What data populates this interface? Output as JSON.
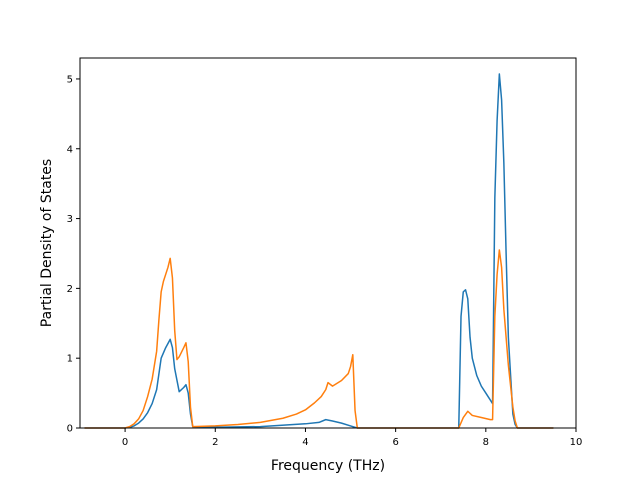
{
  "chart_data": {
    "type": "line",
    "title": "",
    "xlabel": "Frequency (THz)",
    "ylabel": "Partial Density of States",
    "xlim": [
      -1.0,
      10.0
    ],
    "ylim": [
      0,
      5.3
    ],
    "xticks": [
      0,
      2,
      4,
      6,
      8,
      10
    ],
    "yticks": [
      0,
      1,
      2,
      3,
      4,
      5
    ],
    "grid": false,
    "legend": "none",
    "series": [
      {
        "color": "#1f77b4",
        "x": [
          -0.9,
          0.0,
          0.1,
          0.2,
          0.3,
          0.4,
          0.5,
          0.6,
          0.7,
          0.8,
          0.9,
          1.0,
          1.05,
          1.1,
          1.2,
          1.3,
          1.35,
          1.4,
          1.45,
          1.5,
          2.0,
          3.0,
          4.0,
          4.3,
          4.45,
          4.6,
          4.8,
          5.0,
          5.1,
          5.15,
          6.0,
          7.0,
          7.4,
          7.45,
          7.5,
          7.55,
          7.6,
          7.65,
          7.7,
          7.8,
          7.9,
          8.0,
          8.1,
          8.15,
          8.2,
          8.25,
          8.3,
          8.35,
          8.4,
          8.45,
          8.5,
          8.6,
          8.65,
          8.7,
          9.5
        ],
        "y": [
          0,
          0,
          0.01,
          0.03,
          0.07,
          0.13,
          0.22,
          0.35,
          0.55,
          1.0,
          1.15,
          1.27,
          1.15,
          0.85,
          0.52,
          0.58,
          0.62,
          0.5,
          0.2,
          0.02,
          0.01,
          0.02,
          0.06,
          0.08,
          0.12,
          0.1,
          0.07,
          0.03,
          0.01,
          0,
          0,
          0,
          0,
          1.6,
          1.95,
          1.98,
          1.85,
          1.3,
          1.0,
          0.75,
          0.6,
          0.5,
          0.4,
          0.35,
          3.3,
          4.4,
          5.07,
          4.7,
          3.8,
          2.5,
          1.3,
          0.2,
          0.05,
          0,
          0
        ]
      },
      {
        "color": "#ff7f0e",
        "x": [
          -0.9,
          0.0,
          0.1,
          0.2,
          0.3,
          0.4,
          0.5,
          0.6,
          0.7,
          0.75,
          0.8,
          0.85,
          0.9,
          0.95,
          1.0,
          1.05,
          1.1,
          1.15,
          1.2,
          1.3,
          1.35,
          1.4,
          1.45,
          1.5,
          2.0,
          2.5,
          3.0,
          3.5,
          3.8,
          4.0,
          4.2,
          4.35,
          4.45,
          4.5,
          4.6,
          4.8,
          4.95,
          5.0,
          5.05,
          5.1,
          5.15,
          6.0,
          7.0,
          7.4,
          7.5,
          7.6,
          7.7,
          7.9,
          8.1,
          8.15,
          8.2,
          8.25,
          8.3,
          8.35,
          8.4,
          8.5,
          8.6,
          8.65,
          8.7,
          9.5
        ],
        "y": [
          0,
          0,
          0.02,
          0.06,
          0.13,
          0.25,
          0.45,
          0.7,
          1.1,
          1.55,
          1.95,
          2.1,
          2.2,
          2.3,
          2.43,
          2.15,
          1.4,
          0.98,
          1.02,
          1.15,
          1.22,
          0.95,
          0.3,
          0.02,
          0.03,
          0.05,
          0.08,
          0.14,
          0.2,
          0.26,
          0.36,
          0.45,
          0.55,
          0.65,
          0.6,
          0.68,
          0.78,
          0.88,
          1.05,
          0.25,
          0,
          0,
          0,
          0,
          0.15,
          0.24,
          0.18,
          0.15,
          0.12,
          0.12,
          1.6,
          2.2,
          2.55,
          2.3,
          1.7,
          0.9,
          0.3,
          0.1,
          0,
          0
        ]
      }
    ]
  }
}
